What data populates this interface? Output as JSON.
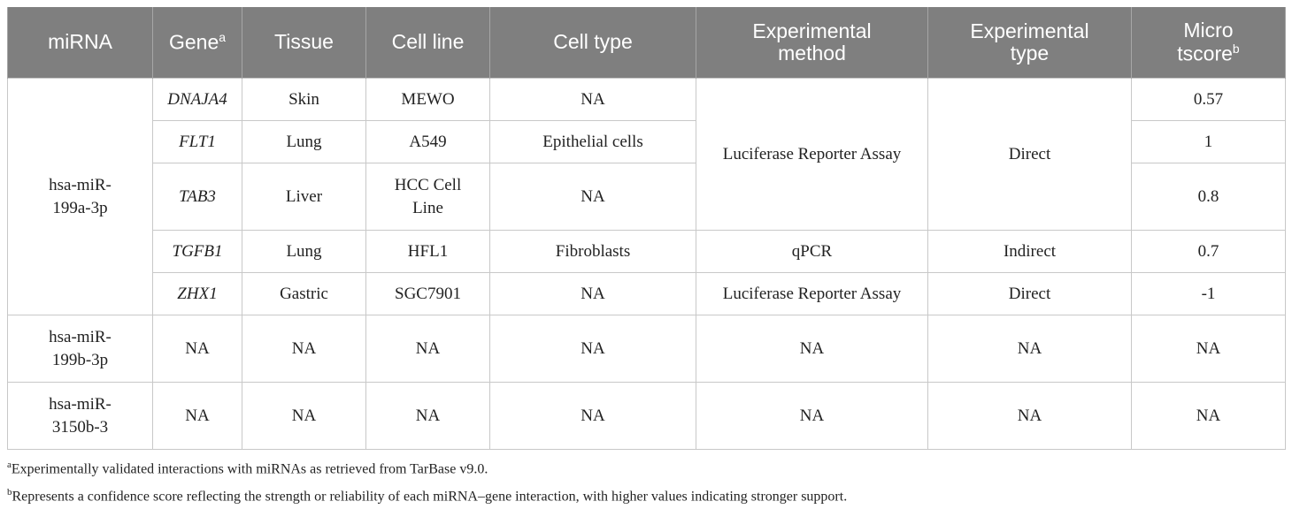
{
  "table": {
    "headers": [
      {
        "text": "miRNA",
        "sup": ""
      },
      {
        "text": "Gene",
        "sup": "a"
      },
      {
        "text": "Tissue",
        "sup": ""
      },
      {
        "text": "Cell line",
        "sup": ""
      },
      {
        "text": "Cell type",
        "sup": ""
      },
      {
        "text": "Experimental method",
        "sup": ""
      },
      {
        "text": "Experimental type",
        "sup": ""
      },
      {
        "text": "Micro tscore",
        "sup": "b"
      }
    ],
    "group1": {
      "mirna": "hsa-miR-199a-3p",
      "method_luciferase": "Luciferase Reporter Assay",
      "type_direct": "Direct",
      "rows": [
        {
          "gene": "DNAJA4",
          "tissue": "Skin",
          "cell_line": "MEWO",
          "cell_type": "NA",
          "score": "0.57"
        },
        {
          "gene": "FLT1",
          "tissue": "Lung",
          "cell_line": "A549",
          "cell_type": "Epithelial cells",
          "score": "1"
        },
        {
          "gene": "TAB3",
          "tissue": "Liver",
          "cell_line": "HCC Cell Line",
          "cell_type": "NA",
          "score": "0.8"
        },
        {
          "gene": "TGFB1",
          "tissue": "Lung",
          "cell_line": "HFL1",
          "cell_type": "Fibroblasts",
          "method": "qPCR",
          "type": "Indirect",
          "score": "0.7"
        },
        {
          "gene": "ZHX1",
          "tissue": "Gastric",
          "cell_line": "SGC7901",
          "cell_type": "NA",
          "method": "Luciferase Reporter Assay",
          "type": "Direct",
          "score": "-1"
        }
      ]
    },
    "group2": {
      "mirna": "hsa-miR-199b-3p",
      "gene": "NA",
      "tissue": "NA",
      "cell_line": "NA",
      "cell_type": "NA",
      "method": "NA",
      "type": "NA",
      "score": "NA"
    },
    "group3": {
      "mirna": "hsa-miR-3150b-3",
      "gene": "NA",
      "tissue": "NA",
      "cell_line": "NA",
      "cell_type": "NA",
      "method": "NA",
      "type": "NA",
      "score": "NA"
    }
  },
  "footnotes": [
    {
      "mark": "a",
      "text": "Experimentally validated interactions with miRNAs as retrieved from TarBase v9.0."
    },
    {
      "mark": "b",
      "text": "Represents a confidence score reflecting the strength or reliability of each miRNA–gene interaction, with higher values indicating stronger support."
    }
  ]
}
